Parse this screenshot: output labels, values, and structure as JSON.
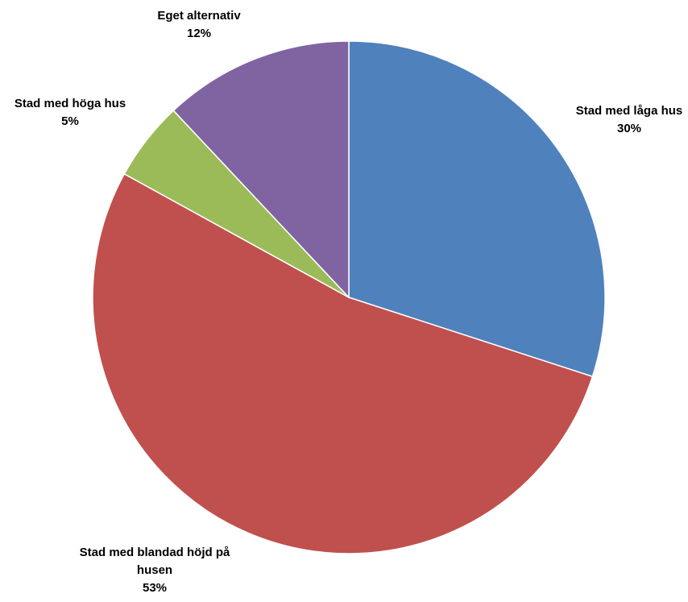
{
  "chart_data": {
    "type": "pie",
    "slices": [
      {
        "label_lines": [
          "Stad med låga hus"
        ],
        "pct_label": "30%",
        "value": 30,
        "color": "#4F81BD"
      },
      {
        "label_lines": [
          "Stad med blandad höjd på",
          "husen"
        ],
        "pct_label": "53%",
        "value": 53,
        "color": "#C0504D"
      },
      {
        "label_lines": [
          "Stad med höga hus"
        ],
        "pct_label": "5%",
        "value": 5,
        "color": "#9BBB59"
      },
      {
        "label_lines": [
          "Eget alternativ"
        ],
        "pct_label": "12%",
        "value": 12,
        "color": "#8064A2"
      }
    ],
    "start_angle": "12 o'clock",
    "direction": "clockwise",
    "legend": "none",
    "data_labels": "outside"
  }
}
